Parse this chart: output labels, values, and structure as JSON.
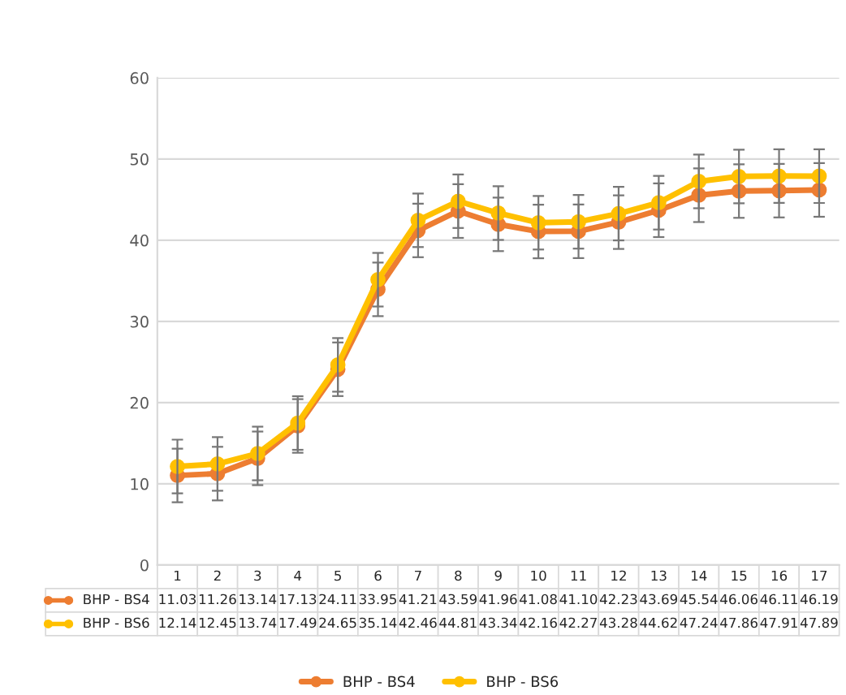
{
  "chart_data": {
    "type": "line",
    "categories": [
      "1",
      "2",
      "3",
      "4",
      "5",
      "6",
      "7",
      "8",
      "9",
      "10",
      "11",
      "12",
      "13",
      "14",
      "15",
      "16",
      "17"
    ],
    "series": [
      {
        "name": "BHP - BS4",
        "color": "#ed7d31",
        "values": [
          11.03,
          11.26,
          13.14,
          17.13,
          24.11,
          33.95,
          41.21,
          43.59,
          41.96,
          41.08,
          41.1,
          42.23,
          43.69,
          45.54,
          46.06,
          46.11,
          46.19
        ],
        "value_labels": [
          "11.03",
          "11.26",
          "13.14",
          "17.13",
          "24.11",
          "33.95",
          "41.21",
          "43.59",
          "41.96",
          "41.08",
          "41.10",
          "42.23",
          "43.69",
          "45.54",
          "46.06",
          "46.11",
          "46.19"
        ],
        "errors": [
          3.3,
          3.3,
          3.3,
          3.3,
          3.3,
          3.3,
          3.3,
          3.3,
          3.3,
          3.3,
          3.3,
          3.3,
          3.3,
          3.3,
          3.3,
          3.3,
          3.3
        ]
      },
      {
        "name": "BHP - BS6",
        "color": "#ffc000",
        "values": [
          12.14,
          12.45,
          13.74,
          17.49,
          24.65,
          35.14,
          42.46,
          44.81,
          43.34,
          42.16,
          42.27,
          43.28,
          44.62,
          47.24,
          47.86,
          47.91,
          47.89
        ],
        "value_labels": [
          "12.14",
          "12.45",
          "13.74",
          "17.49",
          "24.65",
          "35.14",
          "42.46",
          "44.81",
          "43.34",
          "42.16",
          "42.27",
          "43.28",
          "44.62",
          "47.24",
          "47.86",
          "47.91",
          "47.89"
        ],
        "errors": [
          3.3,
          3.3,
          3.3,
          3.3,
          3.3,
          3.3,
          3.3,
          3.3,
          3.3,
          3.3,
          3.3,
          3.3,
          3.3,
          3.3,
          3.3,
          3.3,
          3.3
        ]
      }
    ],
    "ylim": [
      0,
      60
    ],
    "yticks": [
      0,
      10,
      20,
      30,
      40,
      50,
      60
    ],
    "grid": "y",
    "legend": "bottom",
    "marker": "circle",
    "line_style": "solid"
  }
}
